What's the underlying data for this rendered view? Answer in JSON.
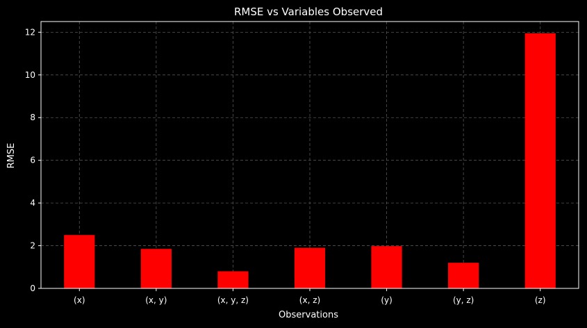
{
  "chart_data": {
    "type": "bar",
    "title": "RMSE vs Variables Observed",
    "xlabel": "Observations",
    "ylabel": "RMSE",
    "categories": [
      "(x)",
      "(x, y)",
      "(x, y, z)",
      "(x, z)",
      "(y)",
      "(y, z)",
      "(z)"
    ],
    "values": [
      2.5,
      1.85,
      0.8,
      1.9,
      1.98,
      1.2,
      11.95
    ],
    "ylim": [
      0,
      12.5
    ],
    "yticks": [
      0,
      2,
      4,
      6,
      8,
      10,
      12
    ],
    "grid": true,
    "colors": {
      "background": "#000000",
      "bar": "#ff0000",
      "grid": "#555555",
      "text": "#ffffff",
      "axes": "#ffffff"
    }
  }
}
